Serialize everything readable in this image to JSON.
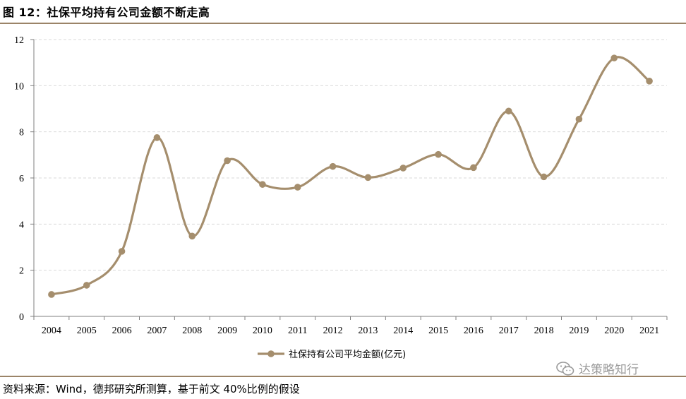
{
  "figure": {
    "title": "图 12：社保平均持有公司金额不断走高",
    "source": "资料来源：Wind，德邦研究所测算，基于前文 40%比例的假设",
    "watermark": "达策略知行"
  },
  "colors": {
    "series": "#a58e6d",
    "rule": "#9b8468",
    "grid": "#d9d9d9"
  },
  "chart_data": {
    "type": "line",
    "smooth": true,
    "markers": "circle",
    "title": "",
    "xlabel": "",
    "ylabel": "",
    "categories": [
      "2004",
      "2005",
      "2006",
      "2007",
      "2008",
      "2009",
      "2010",
      "2011",
      "2012",
      "2013",
      "2014",
      "2015",
      "2016",
      "2017",
      "2018",
      "2019",
      "2020",
      "2021"
    ],
    "series": [
      {
        "name": "社保持有公司平均金额(亿元)",
        "values": [
          0.95,
          1.35,
          2.82,
          7.75,
          3.48,
          6.75,
          5.72,
          5.6,
          6.5,
          6.02,
          6.43,
          7.02,
          6.45,
          8.9,
          6.05,
          8.55,
          11.2,
          10.2
        ]
      }
    ],
    "ylim": [
      0,
      12
    ],
    "yticks": [
      0,
      2,
      4,
      6,
      8,
      10,
      12
    ],
    "grid": "horizontal dashed",
    "legend": "bottom-center"
  }
}
